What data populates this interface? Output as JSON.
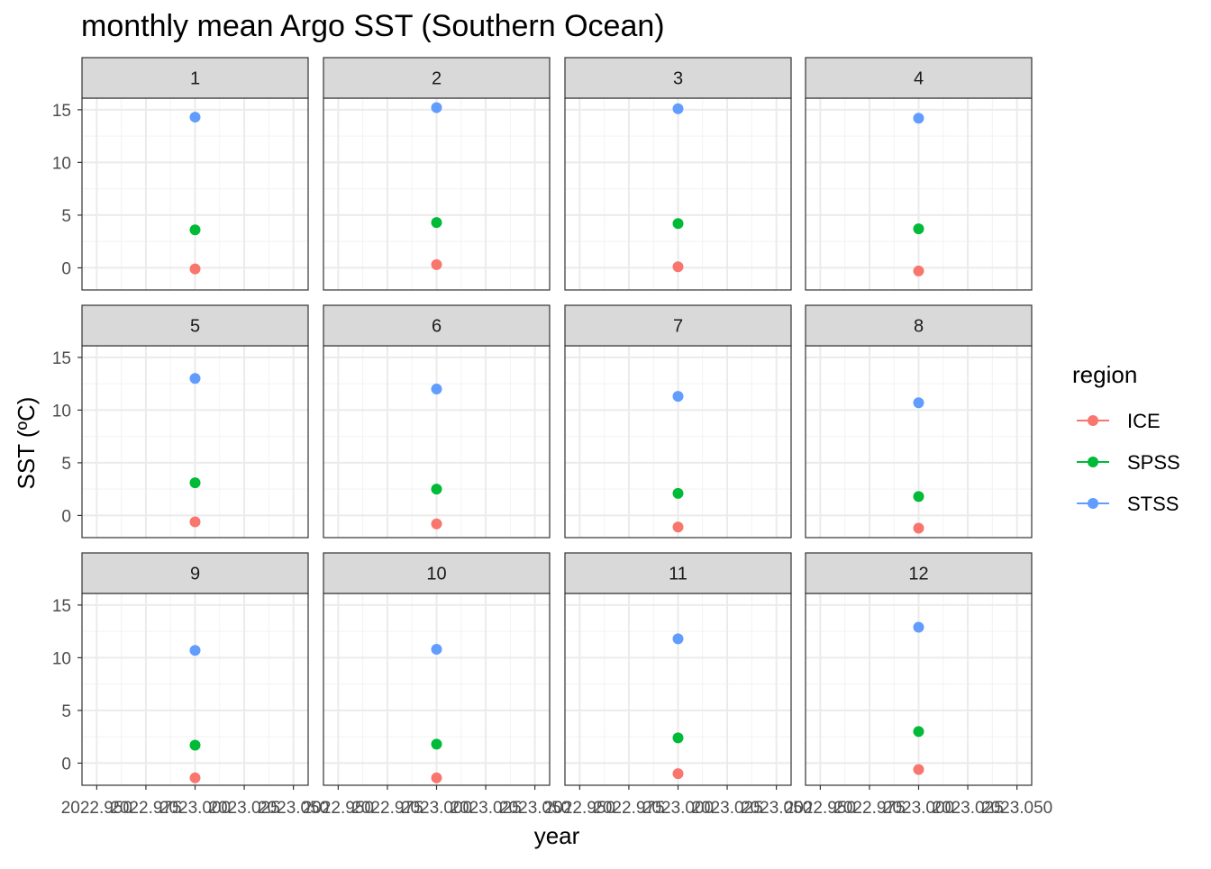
{
  "chart_data": {
    "type": "scatter",
    "title": "monthly mean Argo SST (Southern Ocean)",
    "xlabel": "year",
    "ylabel": "SST (ºC)",
    "facet_labels": [
      "1",
      "2",
      "3",
      "4",
      "5",
      "6",
      "7",
      "8",
      "9",
      "10",
      "11",
      "12"
    ],
    "x_ticks": [
      "2022.950",
      "2022.975",
      "2023.000",
      "2023.025",
      "2023.050"
    ],
    "x_tick_values": [
      2022.95,
      2022.975,
      2023.0,
      2023.025,
      2023.05
    ],
    "y_ticks": [
      "0",
      "5",
      "10",
      "15"
    ],
    "y_tick_values": [
      0,
      5,
      10,
      15
    ],
    "xlim": [
      2022.9425,
      2023.0575
    ],
    "ylim": [
      -2.1,
      16.1
    ],
    "grid": true,
    "legend": {
      "title": "region",
      "position": "right"
    },
    "x": 2023.0,
    "series": [
      {
        "name": "ICE",
        "color": "#F8766D",
        "values": [
          -0.1,
          0.3,
          0.1,
          -0.3,
          -0.6,
          -0.8,
          -1.1,
          -1.2,
          -1.4,
          -1.4,
          -1.0,
          -0.6
        ]
      },
      {
        "name": "SPSS",
        "color": "#00BA38",
        "values": [
          3.6,
          4.3,
          4.2,
          3.7,
          3.1,
          2.5,
          2.1,
          1.8,
          1.7,
          1.8,
          2.4,
          3.0
        ]
      },
      {
        "name": "STSS",
        "color": "#619CFF",
        "values": [
          14.3,
          15.2,
          15.1,
          14.2,
          13.0,
          12.0,
          11.3,
          10.7,
          10.7,
          10.8,
          11.8,
          12.9
        ]
      }
    ]
  }
}
